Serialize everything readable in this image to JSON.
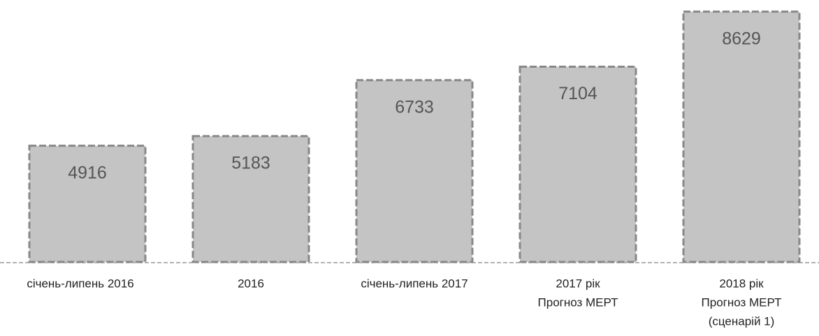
{
  "chart_data": {
    "type": "bar",
    "categories": [
      [
        "січень-липень 2016"
      ],
      [
        "2016"
      ],
      [
        "січень-липень 2017"
      ],
      [
        "2017 рік",
        "Прогноз МЕРТ"
      ],
      [
        "2018 рік",
        "Прогноз МЕРТ",
        "(сценарій 1)"
      ]
    ],
    "values": [
      4916,
      5183,
      6733,
      7104,
      8629
    ],
    "color": "#c4c4c4",
    "ylim": [
      1700,
      8700
    ]
  }
}
